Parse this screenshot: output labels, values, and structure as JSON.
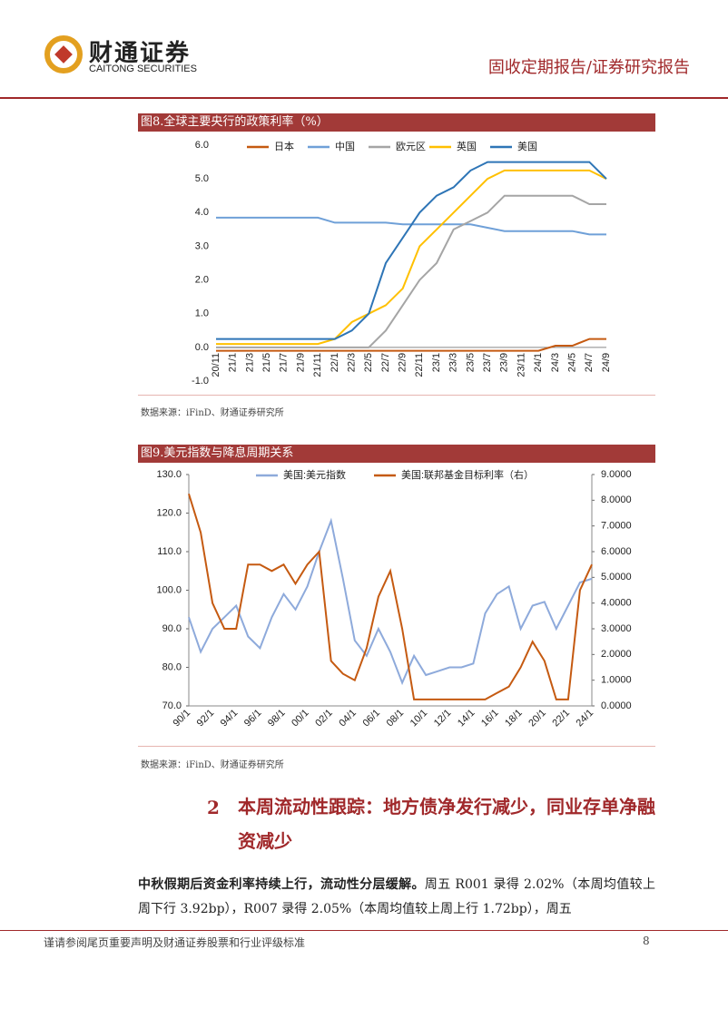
{
  "header": {
    "company": "财通证券",
    "company_en": "CAITONG SECURITIES",
    "report_type": "固收定期报告/证券研究报告"
  },
  "chart_data": [
    {
      "type": "line",
      "title": "图8.全球主要央行的政策利率（%）",
      "categories": [
        "20/11",
        "21/1",
        "21/3",
        "21/5",
        "21/7",
        "21/9",
        "21/11",
        "22/1",
        "22/3",
        "22/5",
        "22/7",
        "22/9",
        "22/11",
        "23/1",
        "23/3",
        "23/5",
        "23/7",
        "23/9",
        "23/11",
        "24/1",
        "24/3",
        "24/5",
        "24/7",
        "24/9"
      ],
      "series": [
        {
          "name": "日本",
          "color": "#c55a11",
          "values": [
            -0.1,
            -0.1,
            -0.1,
            -0.1,
            -0.1,
            -0.1,
            -0.1,
            -0.1,
            -0.1,
            -0.1,
            -0.1,
            -0.1,
            -0.1,
            -0.1,
            -0.1,
            -0.1,
            -0.1,
            -0.1,
            -0.1,
            -0.1,
            0.05,
            0.05,
            0.25,
            0.25
          ]
        },
        {
          "name": "中国",
          "color": "#6fa0d8",
          "values": [
            3.85,
            3.85,
            3.85,
            3.85,
            3.85,
            3.85,
            3.85,
            3.7,
            3.7,
            3.7,
            3.7,
            3.65,
            3.65,
            3.65,
            3.65,
            3.65,
            3.55,
            3.45,
            3.45,
            3.45,
            3.45,
            3.45,
            3.35,
            3.35
          ]
        },
        {
          "name": "欧元区",
          "color": "#a5a5a5",
          "values": [
            0,
            0,
            0,
            0,
            0,
            0,
            0,
            0,
            0,
            0,
            0.5,
            1.25,
            2,
            2.5,
            3.5,
            3.75,
            4,
            4.5,
            4.5,
            4.5,
            4.5,
            4.5,
            4.25,
            4.25
          ]
        },
        {
          "name": "英国",
          "color": "#ffc000",
          "values": [
            0.1,
            0.1,
            0.1,
            0.1,
            0.1,
            0.1,
            0.1,
            0.25,
            0.75,
            1,
            1.25,
            1.75,
            3,
            3.5,
            4,
            4.5,
            5,
            5.25,
            5.25,
            5.25,
            5.25,
            5.25,
            5.25,
            5
          ]
        },
        {
          "name": "美国",
          "color": "#2e75b6",
          "values": [
            0.25,
            0.25,
            0.25,
            0.25,
            0.25,
            0.25,
            0.25,
            0.25,
            0.5,
            1,
            2.5,
            3.25,
            4,
            4.5,
            4.75,
            5.25,
            5.5,
            5.5,
            5.5,
            5.5,
            5.5,
            5.5,
            5.5,
            5
          ]
        }
      ],
      "ylim": [
        -1,
        6
      ],
      "yticks": [
        {
          "value": -1,
          "label": "-1.0"
        },
        {
          "value": 0,
          "label": "0.0"
        },
        {
          "value": 1,
          "label": "1.0"
        },
        {
          "value": 2,
          "label": "2.0"
        },
        {
          "value": 3,
          "label": "3.0"
        },
        {
          "value": 4,
          "label": "4.0"
        },
        {
          "value": 5,
          "label": "5.0"
        },
        {
          "value": 6,
          "label": "6.0"
        }
      ],
      "source": "数据来源：iFinD、财通证券研究所"
    },
    {
      "type": "line",
      "title": "图9.美元指数与降息周期关系",
      "categories": [
        "90/1",
        null,
        "92/1",
        null,
        "94/1",
        null,
        "96/1",
        null,
        "98/1",
        null,
        "00/1",
        null,
        "02/1",
        null,
        "04/1",
        null,
        "06/1",
        null,
        "08/1",
        null,
        "10/1",
        null,
        "12/1",
        null,
        "14/1",
        null,
        "16/1",
        null,
        "18/1",
        null,
        "20/1",
        null,
        "22/1",
        null,
        "24/1"
      ],
      "series": [
        {
          "name": "美国:美元指数",
          "color": "#8eaadb",
          "values": [
            93,
            84,
            90,
            93,
            96,
            88,
            85,
            93,
            99,
            95,
            101,
            110,
            118,
            103,
            87,
            83,
            90,
            84,
            76,
            83,
            78,
            79,
            80,
            80,
            81,
            94,
            99,
            101,
            90,
            96,
            97,
            90,
            96,
            102,
            103
          ]
        },
        {
          "name": "美国:联邦基金目标利率（右）",
          "color": "#c55a11",
          "axis": "y2",
          "values": [
            8.25,
            6.75,
            4,
            3,
            3,
            5.5,
            5.5,
            5.25,
            5.5,
            4.75,
            5.5,
            6,
            1.75,
            1.25,
            1,
            2.25,
            4.25,
            5.25,
            3,
            0.25,
            0.25,
            0.25,
            0.25,
            0.25,
            0.25,
            0.25,
            0.5,
            0.75,
            1.5,
            2.5,
            1.75,
            0.25,
            0.25,
            4.5,
            5.5
          ]
        }
      ],
      "ylim": [
        70,
        130
      ],
      "yticks": [
        {
          "value": 70,
          "label": "70.0"
        },
        {
          "value": 80,
          "label": "80.0"
        },
        {
          "value": 90,
          "label": "90.0"
        },
        {
          "value": 100,
          "label": "100.0"
        },
        {
          "value": 110,
          "label": "110.0"
        },
        {
          "value": 120,
          "label": "120.0"
        },
        {
          "value": 130,
          "label": "130.0"
        }
      ],
      "y2lim": [
        0,
        9
      ],
      "y2ticks": [
        {
          "value": 0,
          "label": "0.0000"
        },
        {
          "value": 1,
          "label": "1.0000"
        },
        {
          "value": 2,
          "label": "2.0000"
        },
        {
          "value": 3,
          "label": "3.0000"
        },
        {
          "value": 4,
          "label": "4.0000"
        },
        {
          "value": 5,
          "label": "5.0000"
        },
        {
          "value": 6,
          "label": "6.0000"
        },
        {
          "value": 7,
          "label": "7.0000"
        },
        {
          "value": 8,
          "label": "8.0000"
        },
        {
          "value": 9,
          "label": "9.0000"
        }
      ],
      "source": "数据来源：iFinD、财通证券研究所"
    }
  ],
  "section": {
    "number": "2",
    "title": "本周流动性跟踪：地方债净发行减少，同业存单净融资减少"
  },
  "paragraph": {
    "lead": "中秋假期后资金利率持续上行，流动性分层缓解。",
    "text": "周五 R001 录得 2.02%（本周均值较上周下行 3.92bp），R007 录得 2.05%（本周均值较上周上行 1.72bp），周五"
  },
  "footer": {
    "disclaimer": "谨请参阅尾页重要声明及财通证券股票和行业评级标准",
    "page": 8
  }
}
